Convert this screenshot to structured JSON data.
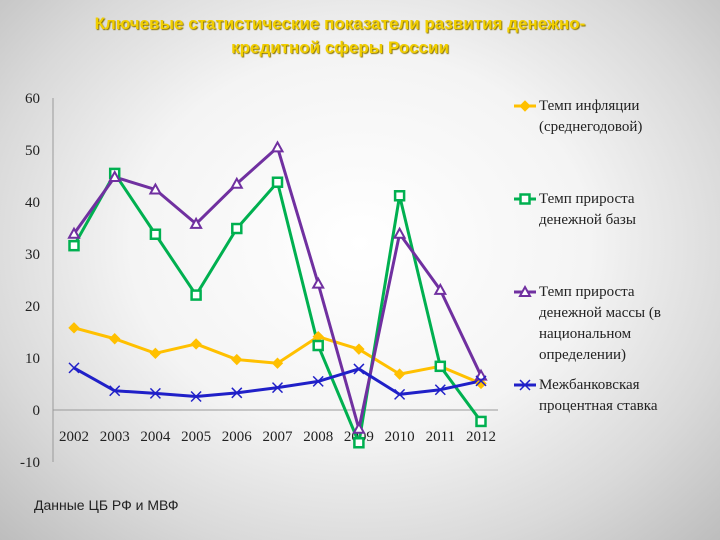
{
  "title": "Ключевые статистические показатели развития денежно-кредитной сферы России",
  "title_lines": [
    "Ключевые статистические показатели развития денежно-",
    "кредитной сферы России"
  ],
  "source": "Данные ЦБ РФ и МВФ",
  "chart_data": {
    "type": "line",
    "title": "Ключевые статистические показатели развития денежно-кредитной сферы России",
    "x": [
      "2002",
      "2003",
      "2004",
      "2005",
      "2006",
      "2007",
      "2008",
      "2009",
      "2010",
      "2011",
      "2012"
    ],
    "ylim": [
      -10,
      60
    ],
    "yticks": [
      -10,
      0,
      10,
      20,
      30,
      40,
      50,
      60
    ],
    "grid": false,
    "legend_position": "right",
    "series": [
      {
        "name": "Темп инфляции (среднегодовой)",
        "legend_lines": [
          "Темп инфляции",
          "(среднегодовой)"
        ],
        "color": "#ffc000",
        "marker": "diamond",
        "values": [
          15.8,
          13.7,
          10.9,
          12.7,
          9.7,
          9.0,
          14.1,
          11.7,
          6.9,
          8.4,
          5.1
        ]
      },
      {
        "name": "Темп прироста денежной базы",
        "legend_lines": [
          "Темп прироста",
          "денежной базы"
        ],
        "color": "#00b050",
        "marker": "square",
        "values": [
          31.6,
          45.5,
          33.8,
          22.1,
          34.9,
          43.8,
          12.4,
          -6.3,
          41.2,
          8.4,
          -2.2
        ]
      },
      {
        "name": "Темп прироста денежной массы (в национальном определении)",
        "legend_lines": [
          "Темп прироста",
          "денежной массы (в",
          "национальном",
          "определении)"
        ],
        "color": "#7030a0",
        "marker": "triangle",
        "values": [
          33.9,
          44.8,
          42.4,
          35.8,
          43.5,
          50.5,
          24.3,
          -3.6,
          33.9,
          23.1,
          6.6
        ]
      },
      {
        "name": "Межбанковская процентная ставка",
        "legend_lines": [
          "Межбанковская",
          "процентная ставка"
        ],
        "color": "#2020c8",
        "marker": "x",
        "values": [
          8.1,
          3.7,
          3.2,
          2.6,
          3.3,
          4.3,
          5.5,
          7.9,
          3.0,
          3.9,
          5.6
        ]
      }
    ]
  }
}
